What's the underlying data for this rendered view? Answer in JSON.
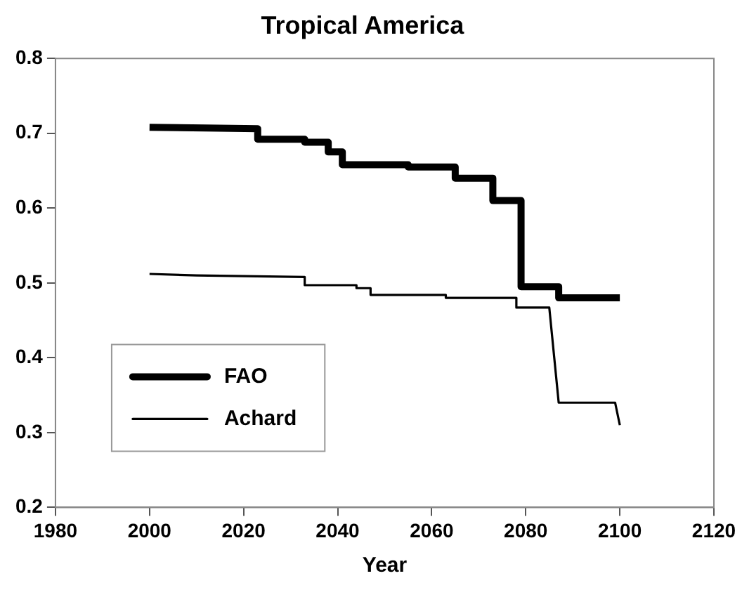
{
  "chart_data": {
    "type": "line",
    "title": "Tropical America",
    "xlabel": "Year",
    "xlim": [
      1980,
      2120
    ],
    "xticks": [
      1980,
      2000,
      2020,
      2040,
      2060,
      2080,
      2100,
      2120
    ],
    "ylim": [
      0.2,
      0.8
    ],
    "yticks": [
      {
        "value": 0.2,
        "label": "0.2"
      },
      {
        "value": 0.3,
        "label": "0.3"
      },
      {
        "value": 0.4,
        "label": "0.4"
      },
      {
        "value": 0.5,
        "label": "0.5"
      },
      {
        "value": 0.6,
        "label": "0.6"
      },
      {
        "value": 0.7,
        "label": "0.7"
      },
      {
        "value": 0.8,
        "label": "0.8"
      }
    ],
    "grid": false,
    "legend": "bottom left",
    "marker": "none",
    "line_style": "solid",
    "series": [
      {
        "name": "FAO",
        "color": "#000000",
        "x": [
          2000,
          2012,
          2023,
          2023,
          2033,
          2033,
          2038,
          2038,
          2041,
          2041,
          2055,
          2055,
          2065,
          2065,
          2073,
          2073,
          2079,
          2079,
          2087,
          2087,
          2100
        ],
        "values": [
          0.708,
          0.707,
          0.706,
          0.692,
          0.692,
          0.688,
          0.688,
          0.675,
          0.675,
          0.658,
          0.658,
          0.655,
          0.655,
          0.64,
          0.64,
          0.61,
          0.61,
          0.495,
          0.495,
          0.48,
          0.48
        ]
      },
      {
        "name": "Achard",
        "color": "#000000",
        "x": [
          2000,
          2010,
          2033,
          2033,
          2044,
          2044,
          2047,
          2047,
          2063,
          2063,
          2078,
          2078,
          2085,
          2087,
          2099,
          2100
        ],
        "values": [
          0.512,
          0.51,
          0.508,
          0.497,
          0.497,
          0.493,
          0.493,
          0.484,
          0.484,
          0.48,
          0.48,
          0.467,
          0.467,
          0.34,
          0.34,
          0.31
        ]
      }
    ]
  }
}
